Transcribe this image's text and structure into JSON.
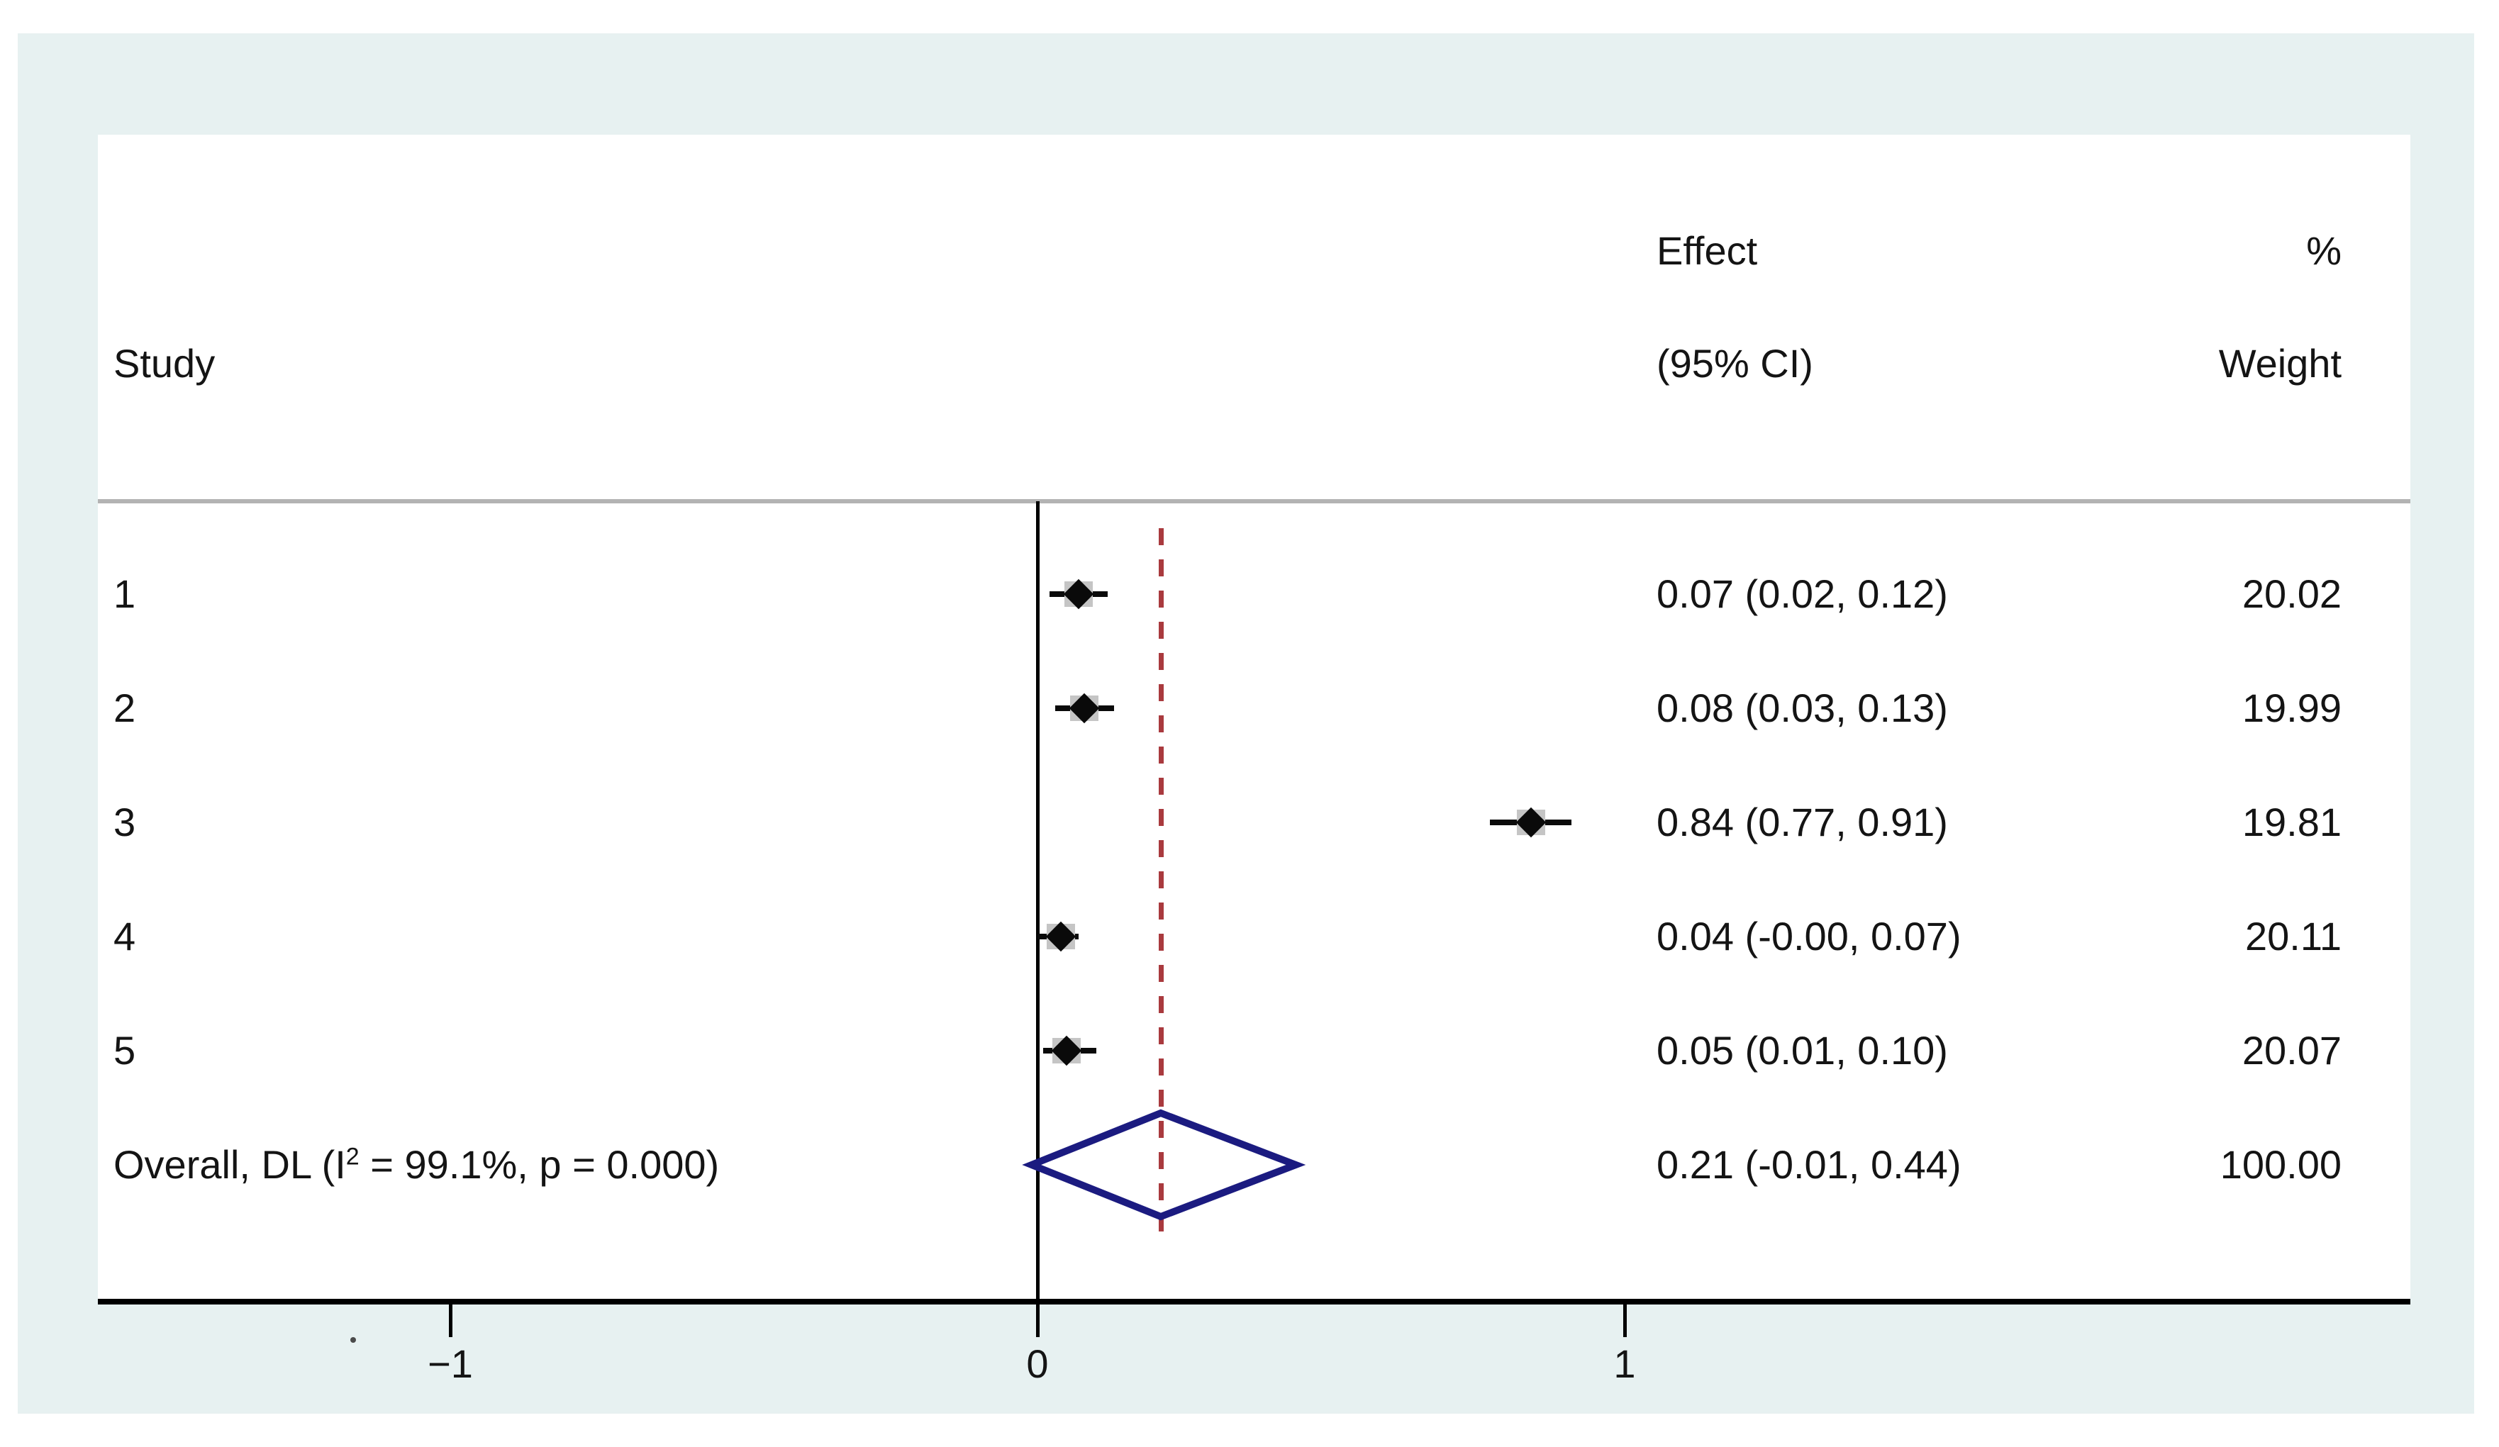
{
  "columns": {
    "study": "Study",
    "effect_line1": "Effect",
    "effect_line2": "(95% CI)",
    "weight_line1": "%",
    "weight_line2": "Weight"
  },
  "colors": {
    "page_background": "#ffffff",
    "frame_background": "#e7f1f1",
    "panel_background": "#ffffff",
    "separator_gray": "#b3b3b3",
    "axis_black": "#000000",
    "reference_line_red": "#a93a3e",
    "overall_diamond_navy": "#1b1b80",
    "weight_box_gray": "#c5c5c5",
    "marker_black": "#0a0a0a",
    "text": "#141414"
  },
  "chart_data": {
    "type": "forest",
    "title": "",
    "xlabel": "",
    "ylabel": "",
    "axis": {
      "xlim": [
        -1.6,
        2.34
      ],
      "ticks": [
        {
          "value": -1,
          "label": "−1"
        },
        {
          "value": 0,
          "label": "0"
        },
        {
          "value": 1,
          "label": "1"
        }
      ],
      "zero_line_value": 0,
      "reference_line_value": 0.21,
      "grid": false
    },
    "studies": [
      {
        "label": "1",
        "effect": 0.07,
        "ci_low": 0.02,
        "ci_high": 0.12,
        "weight": 20.02,
        "effect_text": "0.07 (0.02, 0.12)",
        "weight_text": "20.02"
      },
      {
        "label": "2",
        "effect": 0.08,
        "ci_low": 0.03,
        "ci_high": 0.13,
        "weight": 19.99,
        "effect_text": "0.08 (0.03, 0.13)",
        "weight_text": "19.99"
      },
      {
        "label": "3",
        "effect": 0.84,
        "ci_low": 0.77,
        "ci_high": 0.91,
        "weight": 19.81,
        "effect_text": "0.84 (0.77, 0.91)",
        "weight_text": "19.81"
      },
      {
        "label": "4",
        "effect": 0.04,
        "ci_low": -0.0,
        "ci_high": 0.07,
        "weight": 20.11,
        "effect_text": "0.04 (-0.00, 0.07)",
        "weight_text": "20.11"
      },
      {
        "label": "5",
        "effect": 0.05,
        "ci_low": 0.01,
        "ci_high": 0.1,
        "weight": 20.07,
        "effect_text": "0.05 (0.01, 0.10)",
        "weight_text": "20.07"
      }
    ],
    "overall": {
      "label_prefix": "Overall, DL (I",
      "label_sup": "2",
      "label_suffix": " = 99.1%, p = 0.000)",
      "effect": 0.21,
      "ci_low": -0.01,
      "ci_high": 0.44,
      "effect_text": "0.21 (-0.01, 0.44)",
      "weight_text": "100.00"
    }
  }
}
